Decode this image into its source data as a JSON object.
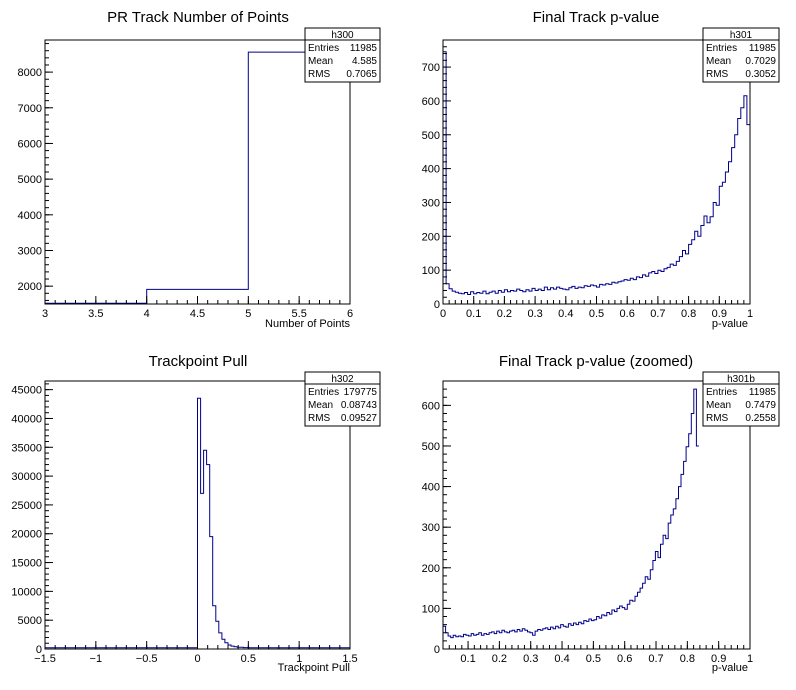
{
  "chart_data": [
    {
      "type": "histogram",
      "title": "PR Track Number of Points",
      "xlabel": "Number of Points",
      "xlim": [
        3,
        6
      ],
      "ylim": [
        1500,
        8900
      ],
      "xticks": [
        "3",
        "3.5",
        "4",
        "4.5",
        "5",
        "5.5",
        "6"
      ],
      "yticks": [
        "2000",
        "3000",
        "4000",
        "5000",
        "6000",
        "7000",
        "8000"
      ],
      "line_color": "#00008b",
      "bins": [
        [
          3,
          4,
          1520
        ],
        [
          4,
          5,
          1910
        ],
        [
          5,
          6,
          8560
        ]
      ],
      "stats": {
        "name": "h300",
        "rows": [
          [
            "Entries",
            "11985"
          ],
          [
            "Mean",
            "4.585"
          ],
          [
            "RMS",
            "0.7065"
          ]
        ]
      }
    },
    {
      "type": "histogram",
      "title": "Final Track p-value",
      "xlabel": "p-value",
      "xlim": [
        0,
        1
      ],
      "ylim": [
        0,
        780
      ],
      "xticks": [
        "0",
        "0.1",
        "0.2",
        "0.3",
        "0.4",
        "0.5",
        "0.6",
        "0.7",
        "0.8",
        "0.9",
        "1"
      ],
      "yticks": [
        "0",
        "100",
        "200",
        "300",
        "400",
        "500",
        "600",
        "700"
      ],
      "line_color": "#00008b",
      "bins_start": 0,
      "bin_width": 0.01,
      "values": [
        745,
        60,
        45,
        38,
        35,
        32,
        30,
        34,
        28,
        36,
        30,
        34,
        32,
        38,
        30,
        35,
        38,
        32,
        40,
        35,
        42,
        36,
        40,
        38,
        44,
        40,
        36,
        42,
        38,
        46,
        40,
        44,
        40,
        50,
        42,
        48,
        44,
        50,
        46,
        44,
        42,
        48,
        52,
        46,
        50,
        48,
        54,
        52,
        56,
        54,
        50,
        58,
        56,
        60,
        58,
        64,
        62,
        66,
        68,
        72,
        70,
        76,
        72,
        80,
        78,
        86,
        82,
        92,
        96,
        90,
        100,
        96,
        104,
        108,
        118,
        114,
        126,
        140,
        158,
        148,
        176,
        190,
        215,
        200,
        232,
        260,
        240,
        258,
        300,
        292,
        348,
        360,
        390,
        420,
        462,
        500,
        548,
        580,
        615,
        530
      ],
      "stats": {
        "name": "h301",
        "rows": [
          [
            "Entries",
            "11985"
          ],
          [
            "Mean",
            "0.7029"
          ],
          [
            "RMS",
            "0.3052"
          ]
        ]
      }
    },
    {
      "type": "histogram",
      "title": "Trackpoint Pull",
      "xlabel": "Trackpoint Pull",
      "xlim": [
        -1.5,
        1.5
      ],
      "ylim": [
        0,
        46500
      ],
      "xticks": [
        "−1.5",
        "−1",
        "−0.5",
        "0",
        "0.5",
        "1",
        "1.5"
      ],
      "yticks": [
        "0",
        "5000",
        "10000",
        "15000",
        "20000",
        "25000",
        "30000",
        "35000",
        "40000",
        "45000"
      ],
      "line_color": "#00008b",
      "bins_start": -1.5,
      "bin_width": 0.03,
      "values": [
        200,
        200,
        200,
        200,
        200,
        200,
        200,
        200,
        200,
        200,
        200,
        200,
        200,
        200,
        200,
        200,
        200,
        200,
        200,
        200,
        200,
        200,
        200,
        200,
        200,
        200,
        200,
        200,
        200,
        200,
        200,
        200,
        200,
        200,
        200,
        200,
        200,
        200,
        200,
        200,
        200,
        200,
        200,
        200,
        200,
        200,
        200,
        200,
        200,
        200,
        43500,
        27000,
        34500,
        32000,
        19500,
        7500,
        4800,
        2800,
        1700,
        1100,
        700,
        500,
        400,
        300,
        300,
        250,
        250,
        200,
        200,
        200,
        200,
        200,
        200,
        200,
        200,
        200,
        200,
        200,
        200,
        200,
        200,
        200,
        200,
        200,
        200,
        200,
        200,
        200,
        200,
        200,
        200,
        200,
        200,
        200,
        200,
        200,
        200,
        200,
        200,
        200
      ],
      "stats": {
        "name": "h302",
        "rows": [
          [
            "Entries",
            "179775"
          ],
          [
            "Mean",
            "0.08743"
          ],
          [
            "RMS",
            "0.09527"
          ]
        ]
      }
    },
    {
      "type": "histogram",
      "title": "Final Track p-value (zoomed)",
      "xlabel": "p-value",
      "xlim": [
        0.02,
        1
      ],
      "ylim": [
        0,
        660
      ],
      "xticks": [
        "0.1",
        "0.2",
        "0.3",
        "0.4",
        "0.5",
        "0.6",
        "0.7",
        "0.8",
        "0.9",
        "1"
      ],
      "yticks": [
        "0",
        "100",
        "200",
        "300",
        "400",
        "500",
        "600"
      ],
      "line_color": "#00008b",
      "bins_start": 0.02,
      "bin_width": 0.00817,
      "values": [
        56,
        40,
        32,
        28,
        34,
        30,
        32,
        30,
        36,
        34,
        32,
        38,
        34,
        36,
        40,
        34,
        38,
        36,
        40,
        42,
        38,
        44,
        40,
        46,
        42,
        40,
        44,
        46,
        42,
        48,
        44,
        50,
        46,
        42,
        40,
        34,
        44,
        48,
        46,
        50,
        52,
        48,
        54,
        50,
        56,
        52,
        60,
        56,
        54,
        62,
        58,
        64,
        60,
        66,
        62,
        70,
        68,
        74,
        70,
        72,
        80,
        76,
        84,
        82,
        90,
        86,
        96,
        92,
        100,
        106,
        102,
        98,
        110,
        120,
        118,
        130,
        140,
        150,
        162,
        178,
        172,
        195,
        218,
        240,
        225,
        258,
        280,
        272,
        310,
        330,
        345,
        370,
        400,
        430,
        462,
        498,
        530,
        580,
        640,
        500
      ],
      "stats": {
        "name": "h301b",
        "rows": [
          [
            "Entries",
            "11985"
          ],
          [
            "Mean",
            "0.7479"
          ],
          [
            "RMS",
            "0.2558"
          ]
        ]
      }
    }
  ]
}
